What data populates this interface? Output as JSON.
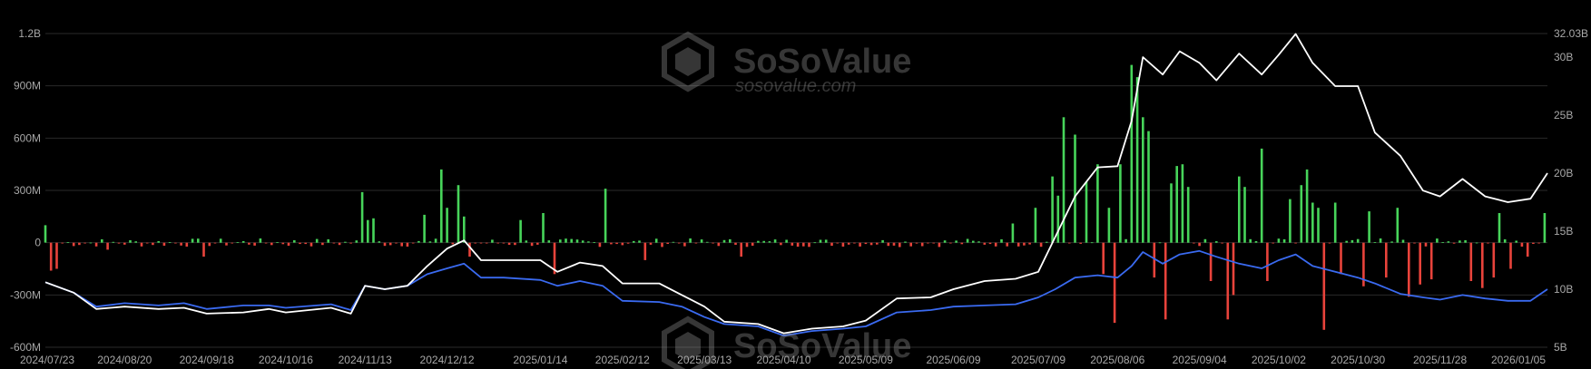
{
  "watermark": {
    "brand": "SoSoValue",
    "url": "sosovalue.com"
  },
  "chart_data": {
    "type": "bar+line",
    "x_dates": [
      "2024/07/23",
      "2024/08/20",
      "2024/09/18",
      "2024/10/16",
      "2024/11/13",
      "2024/12/12",
      "2025/01/14",
      "2025/02/12",
      "2025/03/13",
      "2025/04/10",
      "2025/05/09",
      "2025/06/09",
      "2025/07/09",
      "2025/08/06",
      "2025/09/04",
      "2025/10/02",
      "2025/10/30",
      "2025/11/28",
      "2026/01/05"
    ],
    "y_left": {
      "ticks": [
        1200,
        900,
        600,
        300,
        0,
        -300,
        -600
      ],
      "labels": [
        "1.2B",
        "900M",
        "600M",
        "300M",
        "0",
        "-300M",
        "-600M"
      ],
      "range": [
        -600,
        1200
      ],
      "unit": "M USD"
    },
    "y_right": {
      "ticks": [
        32.03,
        30,
        25,
        20,
        15,
        10,
        5
      ],
      "labels": [
        "32.03B",
        "30B",
        "25B",
        "20B",
        "15B",
        "10B",
        "5B"
      ],
      "range": [
        5,
        32.03
      ],
      "unit": "B USD"
    },
    "colors": {
      "inflow": "#47d45a",
      "outflow": "#e8433b",
      "white_line": "#ffffff",
      "blue_line": "#3a6af0",
      "grid": "#2a2a2a"
    },
    "bars": {
      "inflow_spikes": [
        [
          "2024/07/23",
          100
        ],
        [
          "2024/11/13",
          290
        ],
        [
          "2024/11/15",
          130
        ],
        [
          "2024/11/17",
          140
        ],
        [
          "2024/12/05",
          160
        ],
        [
          "2024/12/10",
          420
        ],
        [
          "2024/12/12",
          200
        ],
        [
          "2024/12/16",
          330
        ],
        [
          "2024/12/18",
          150
        ],
        [
          "2025/01/08",
          130
        ],
        [
          "2025/01/15",
          170
        ],
        [
          "2025/02/07",
          310
        ],
        [
          "2025/06/30",
          110
        ],
        [
          "2025/07/08",
          200
        ],
        [
          "2025/07/14",
          380
        ],
        [
          "2025/07/16",
          270
        ],
        [
          "2025/07/19",
          720
        ],
        [
          "2025/07/22",
          620
        ],
        [
          "2025/07/26",
          350
        ],
        [
          "2025/07/30",
          450
        ],
        [
          "2025/08/04",
          200
        ],
        [
          "2025/08/08",
          450
        ],
        [
          "2025/08/11",
          1020
        ],
        [
          "2025/08/13",
          950
        ],
        [
          "2025/08/15",
          720
        ],
        [
          "2025/08/17",
          640
        ],
        [
          "2025/08/26",
          340
        ],
        [
          "2025/08/28",
          440
        ],
        [
          "2025/08/30",
          450
        ],
        [
          "2025/09/01",
          320
        ],
        [
          "2025/09/18",
          380
        ],
        [
          "2025/09/20",
          320
        ],
        [
          "2025/09/26",
          540
        ],
        [
          "2025/10/06",
          250
        ],
        [
          "2025/10/10",
          330
        ],
        [
          "2025/10/12",
          420
        ],
        [
          "2025/10/14",
          230
        ],
        [
          "2025/10/16",
          200
        ],
        [
          "2025/10/22",
          230
        ],
        [
          "2025/11/04",
          180
        ],
        [
          "2025/11/14",
          200
        ],
        [
          "2025/12/20",
          170
        ],
        [
          "2026/01/05",
          170
        ]
      ],
      "outflow_spikes": [
        [
          "2024/07/25",
          -160
        ],
        [
          "2024/07/28",
          -150
        ],
        [
          "2024/08/14",
          -40
        ],
        [
          "2024/09/18",
          -80
        ],
        [
          "2024/12/20",
          -80
        ],
        [
          "2025/01/20",
          -180
        ],
        [
          "2025/02/20",
          -100
        ],
        [
          "2025/03/26",
          -80
        ],
        [
          "2025/08/02",
          -180
        ],
        [
          "2025/08/06",
          -460
        ],
        [
          "2025/08/20",
          -200
        ],
        [
          "2025/08/24",
          -440
        ],
        [
          "2025/09/08",
          -220
        ],
        [
          "2025/09/14",
          -440
        ],
        [
          "2025/09/16",
          -300
        ],
        [
          "2025/09/29",
          -220
        ],
        [
          "2025/10/18",
          -500
        ],
        [
          "2025/10/25",
          -180
        ],
        [
          "2025/11/01",
          -250
        ],
        [
          "2025/11/10",
          -200
        ],
        [
          "2025/11/18",
          -310
        ],
        [
          "2025/11/22",
          -240
        ],
        [
          "2025/11/26",
          -210
        ],
        [
          "2025/12/10",
          -220
        ],
        [
          "2025/12/14",
          -260
        ],
        [
          "2025/12/18",
          -200
        ],
        [
          "2025/12/24",
          -150
        ],
        [
          "2025/12/30",
          -80
        ]
      ]
    },
    "white_line": [
      [
        "2024/07/23",
        10.6
      ],
      [
        "2024/08/02",
        9.7
      ],
      [
        "2024/08/10",
        8.3
      ],
      [
        "2024/08/20",
        8.5
      ],
      [
        "2024/09/01",
        8.3
      ],
      [
        "2024/09/10",
        8.4
      ],
      [
        "2024/09/18",
        7.9
      ],
      [
        "2024/10/01",
        8.0
      ],
      [
        "2024/10/10",
        8.3
      ],
      [
        "2024/10/16",
        8.0
      ],
      [
        "2024/11/01",
        8.4
      ],
      [
        "2024/11/08",
        7.9
      ],
      [
        "2024/11/13",
        10.3
      ],
      [
        "2024/11/20",
        10.0
      ],
      [
        "2024/11/28",
        10.3
      ],
      [
        "2024/12/05",
        12.0
      ],
      [
        "2024/12/12",
        13.5
      ],
      [
        "2024/12/18",
        14.2
      ],
      [
        "2024/12/24",
        12.5
      ],
      [
        "2025/01/01",
        12.5
      ],
      [
        "2025/01/14",
        12.5
      ],
      [
        "2025/01/20",
        11.5
      ],
      [
        "2025/01/28",
        12.3
      ],
      [
        "2025/02/05",
        12.0
      ],
      [
        "2025/02/12",
        10.5
      ],
      [
        "2025/02/25",
        10.5
      ],
      [
        "2025/03/05",
        9.5
      ],
      [
        "2025/03/13",
        8.5
      ],
      [
        "2025/03/20",
        7.2
      ],
      [
        "2025/04/01",
        7.0
      ],
      [
        "2025/04/10",
        6.2
      ],
      [
        "2025/04/20",
        6.6
      ],
      [
        "2025/05/01",
        6.8
      ],
      [
        "2025/05/09",
        7.3
      ],
      [
        "2025/05/20",
        9.2
      ],
      [
        "2025/06/01",
        9.3
      ],
      [
        "2025/06/09",
        10.0
      ],
      [
        "2025/06/20",
        10.7
      ],
      [
        "2025/07/01",
        10.9
      ],
      [
        "2025/07/09",
        11.5
      ],
      [
        "2025/07/15",
        14.5
      ],
      [
        "2025/07/22",
        18.0
      ],
      [
        "2025/07/30",
        20.5
      ],
      [
        "2025/08/06",
        20.6
      ],
      [
        "2025/08/11",
        24.5
      ],
      [
        "2025/08/15",
        30.0
      ],
      [
        "2025/08/22",
        28.5
      ],
      [
        "2025/08/28",
        30.5
      ],
      [
        "2025/09/04",
        29.5
      ],
      [
        "2025/09/10",
        28.0
      ],
      [
        "2025/09/18",
        30.3
      ],
      [
        "2025/09/26",
        28.5
      ],
      [
        "2025/10/02",
        30.2
      ],
      [
        "2025/10/08",
        32.0
      ],
      [
        "2025/10/14",
        29.5
      ],
      [
        "2025/10/22",
        27.5
      ],
      [
        "2025/10/30",
        27.5
      ],
      [
        "2025/11/05",
        23.5
      ],
      [
        "2025/11/14",
        21.5
      ],
      [
        "2025/11/22",
        18.5
      ],
      [
        "2025/11/28",
        18.0
      ],
      [
        "2025/12/06",
        19.5
      ],
      [
        "2025/12/14",
        18.0
      ],
      [
        "2025/12/22",
        17.5
      ],
      [
        "2025/12/30",
        17.8
      ],
      [
        "2026/01/05",
        20.0
      ]
    ],
    "blue_line": [
      [
        "2024/07/23",
        10.6
      ],
      [
        "2024/08/02",
        9.7
      ],
      [
        "2024/08/10",
        8.5
      ],
      [
        "2024/08/20",
        8.8
      ],
      [
        "2024/09/01",
        8.6
      ],
      [
        "2024/09/10",
        8.8
      ],
      [
        "2024/09/18",
        8.3
      ],
      [
        "2024/10/01",
        8.6
      ],
      [
        "2024/10/10",
        8.6
      ],
      [
        "2024/10/16",
        8.4
      ],
      [
        "2024/11/01",
        8.7
      ],
      [
        "2024/11/08",
        8.2
      ],
      [
        "2024/11/13",
        10.3
      ],
      [
        "2024/11/20",
        10.0
      ],
      [
        "2024/11/28",
        10.3
      ],
      [
        "2024/12/05",
        11.3
      ],
      [
        "2024/12/12",
        11.8
      ],
      [
        "2024/12/18",
        12.2
      ],
      [
        "2024/12/24",
        11.0
      ],
      [
        "2025/01/01",
        11.0
      ],
      [
        "2025/01/14",
        10.8
      ],
      [
        "2025/01/20",
        10.3
      ],
      [
        "2025/01/28",
        10.7
      ],
      [
        "2025/02/05",
        10.3
      ],
      [
        "2025/02/12",
        9.0
      ],
      [
        "2025/02/25",
        8.9
      ],
      [
        "2025/03/05",
        8.5
      ],
      [
        "2025/03/13",
        7.6
      ],
      [
        "2025/03/20",
        7.0
      ],
      [
        "2025/04/01",
        6.8
      ],
      [
        "2025/04/10",
        6.0
      ],
      [
        "2025/04/20",
        6.4
      ],
      [
        "2025/05/01",
        6.6
      ],
      [
        "2025/05/09",
        6.8
      ],
      [
        "2025/05/20",
        8.0
      ],
      [
        "2025/06/01",
        8.2
      ],
      [
        "2025/06/09",
        8.5
      ],
      [
        "2025/06/20",
        8.6
      ],
      [
        "2025/07/01",
        8.7
      ],
      [
        "2025/07/09",
        9.3
      ],
      [
        "2025/07/15",
        10.0
      ],
      [
        "2025/07/22",
        11.0
      ],
      [
        "2025/07/30",
        11.2
      ],
      [
        "2025/08/06",
        11.0
      ],
      [
        "2025/08/11",
        12.0
      ],
      [
        "2025/08/15",
        13.2
      ],
      [
        "2025/08/22",
        12.2
      ],
      [
        "2025/08/28",
        13.0
      ],
      [
        "2025/09/04",
        13.3
      ],
      [
        "2025/09/10",
        12.8
      ],
      [
        "2025/09/18",
        12.2
      ],
      [
        "2025/09/26",
        11.8
      ],
      [
        "2025/10/02",
        12.5
      ],
      [
        "2025/10/08",
        13.0
      ],
      [
        "2025/10/14",
        12.0
      ],
      [
        "2025/10/22",
        11.5
      ],
      [
        "2025/10/30",
        11.0
      ],
      [
        "2025/11/05",
        10.5
      ],
      [
        "2025/11/14",
        9.6
      ],
      [
        "2025/11/22",
        9.3
      ],
      [
        "2025/11/28",
        9.1
      ],
      [
        "2025/12/06",
        9.5
      ],
      [
        "2025/12/14",
        9.2
      ],
      [
        "2025/12/22",
        9.0
      ],
      [
        "2025/12/30",
        9.0
      ],
      [
        "2026/01/05",
        10.0
      ]
    ]
  }
}
